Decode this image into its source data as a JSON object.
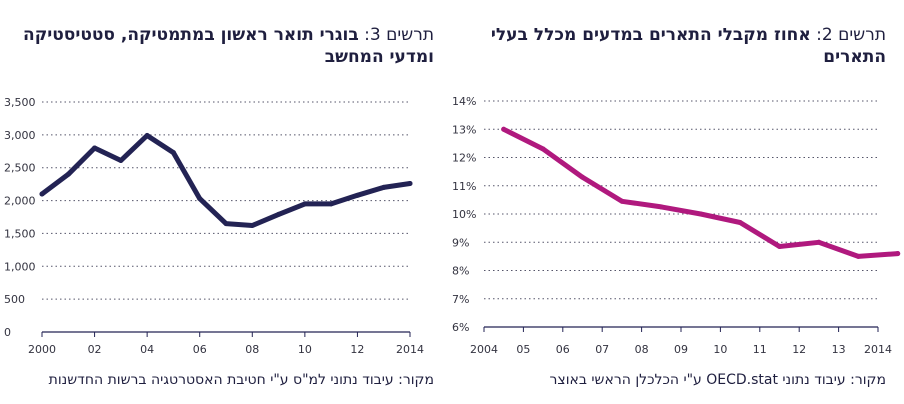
{
  "chart_data": [
    {
      "type": "line",
      "title_prefix": "תרשים 3:",
      "title": "בוגרי תואר ראשון במתמטיקה, סטטיסטיקה ומדעי המחשב",
      "source": "מקור: עיבוד נתוני למ\"ס ע\"י חטיבת האסטרטגיה ברשות החדשנות",
      "color": "#232354",
      "x_ticks": [
        "2000",
        "02",
        "04",
        "06",
        "08",
        "10",
        "12",
        "2014"
      ],
      "y_ticks": [
        "3,500",
        "3,000",
        "2,500",
        "2,000",
        "1,500",
        "1,000",
        "500",
        "0"
      ],
      "xlim": [
        2000,
        2014
      ],
      "ylim": [
        0,
        3500
      ],
      "grid": true,
      "series": [
        {
          "x": [
            2000,
            2001,
            2002,
            2003,
            2004,
            2005,
            2006,
            2007,
            2008,
            2009,
            2010,
            2011,
            2012,
            2013,
            2014
          ],
          "values": [
            2100,
            2400,
            2800,
            2610,
            2990,
            2730,
            2030,
            1650,
            1620,
            1790,
            1950,
            1950,
            2080,
            2200,
            2260
          ]
        }
      ]
    },
    {
      "type": "line",
      "title_prefix": "תרשים 2:",
      "title": "אחוז מקבלי התארים במדעים מכלל בעלי התארים",
      "source": "מקור: עיבוד נתוני OECD.stat ע\"י הכלכלן הראשי באוצר",
      "color": "#b0197e",
      "x_ticks": [
        "2004",
        "05",
        "06",
        "07",
        "08",
        "09",
        "10",
        "11",
        "12",
        "13",
        "2014"
      ],
      "y_ticks": [
        "14%",
        "13%",
        "12%",
        "11%",
        "10%",
        "9%",
        "8%",
        "7%",
        "6%"
      ],
      "xlim": [
        2004,
        2014
      ],
      "ylim": [
        6,
        14
      ],
      "grid": true,
      "series": [
        {
          "x": [
            2004.5,
            2005.5,
            2006.5,
            2007.5,
            2008.5,
            2009.5,
            2010.5,
            2011.5,
            2012.5,
            2013.5,
            2014.5
          ],
          "values": [
            13.0,
            12.3,
            11.3,
            10.45,
            10.25,
            10.0,
            9.7,
            8.85,
            9.0,
            8.5,
            8.6
          ]
        }
      ]
    }
  ]
}
